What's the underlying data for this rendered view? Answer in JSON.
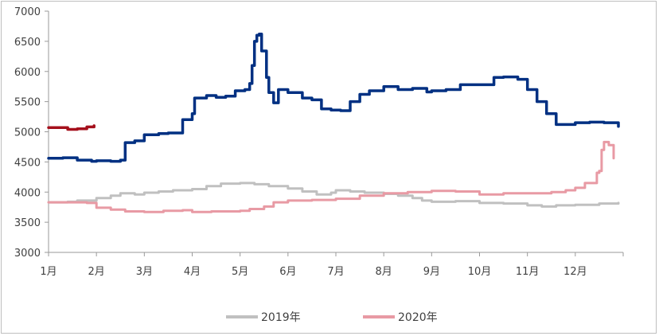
{
  "chart_data": {
    "type": "line",
    "ylim": [
      3000,
      7000
    ],
    "y_ticks": [
      "7000",
      "6500",
      "6000",
      "5500",
      "5000",
      "4500",
      "4000",
      "3500",
      "3000"
    ],
    "x_ticks": [
      "1月",
      "2月",
      "3月",
      "4月",
      "5月",
      "6月",
      "7月",
      "8月",
      "9月",
      "10月",
      "11月",
      "12月"
    ],
    "grid": false,
    "legend_position": "bottom",
    "series": [
      {
        "name": "2019年",
        "color": "#c0c0c0",
        "x": [
          1.0,
          1.4,
          1.6,
          2.0,
          2.3,
          2.5,
          2.8,
          3.0,
          3.3,
          3.6,
          4.0,
          4.3,
          4.6,
          5.0,
          5.3,
          5.6,
          6.0,
          6.3,
          6.6,
          6.9,
          7.0,
          7.3,
          7.6,
          8.0,
          8.3,
          8.6,
          8.8,
          9.0,
          9.5,
          10.0,
          10.5,
          11.0,
          11.3,
          11.6,
          12.0,
          12.5,
          12.9
        ],
        "values": [
          3830,
          3840,
          3860,
          3900,
          3940,
          3980,
          3960,
          3990,
          4010,
          4030,
          4050,
          4100,
          4140,
          4150,
          4130,
          4100,
          4060,
          4010,
          3960,
          3990,
          4030,
          4010,
          3990,
          3970,
          3940,
          3900,
          3860,
          3840,
          3850,
          3820,
          3810,
          3780,
          3760,
          3780,
          3790,
          3810,
          3820
        ]
      },
      {
        "name": "2020年",
        "color": "#e89aa4",
        "x": [
          1.0,
          1.4,
          1.8,
          2.0,
          2.3,
          2.6,
          3.0,
          3.4,
          3.8,
          4.0,
          4.4,
          5.0,
          5.2,
          5.5,
          5.7,
          6.0,
          6.5,
          7.0,
          7.5,
          8.0,
          8.5,
          9.0,
          9.5,
          10.0,
          10.5,
          11.0,
          11.5,
          11.8,
          12.0,
          12.2,
          12.45,
          12.5,
          12.55,
          12.6,
          12.7,
          12.8
        ],
        "values": [
          3830,
          3830,
          3820,
          3740,
          3710,
          3680,
          3670,
          3690,
          3700,
          3670,
          3680,
          3690,
          3720,
          3760,
          3830,
          3860,
          3870,
          3890,
          3940,
          3980,
          4000,
          4020,
          4010,
          3960,
          3980,
          3980,
          4000,
          4030,
          4070,
          4150,
          4320,
          4350,
          4700,
          4830,
          4780,
          4560
        ]
      },
      {
        "name": "",
        "color": "#003082",
        "x": [
          1.0,
          1.3,
          1.6,
          1.9,
          2.0,
          2.3,
          2.5,
          2.6,
          2.8,
          3.0,
          3.3,
          3.5,
          3.8,
          4.0,
          4.05,
          4.3,
          4.5,
          4.7,
          4.9,
          5.1,
          5.2,
          5.25,
          5.3,
          5.35,
          5.4,
          5.45,
          5.55,
          5.6,
          5.7,
          5.8,
          6.0,
          6.3,
          6.5,
          6.7,
          6.9,
          7.1,
          7.3,
          7.5,
          7.7,
          8.0,
          8.3,
          8.6,
          8.9,
          9.0,
          9.3,
          9.6,
          10.0,
          10.3,
          10.5,
          10.8,
          11.0,
          11.2,
          11.4,
          11.6,
          12.0,
          12.3,
          12.6,
          12.9
        ],
        "values": [
          4560,
          4570,
          4530,
          4510,
          4520,
          4510,
          4530,
          4820,
          4850,
          4950,
          4970,
          4980,
          5200,
          5300,
          5560,
          5600,
          5570,
          5590,
          5680,
          5700,
          5800,
          6100,
          6500,
          6600,
          6620,
          6340,
          5900,
          5650,
          5480,
          5700,
          5650,
          5560,
          5530,
          5380,
          5360,
          5350,
          5500,
          5620,
          5680,
          5750,
          5700,
          5720,
          5660,
          5680,
          5700,
          5780,
          5780,
          5900,
          5910,
          5870,
          5700,
          5500,
          5300,
          5120,
          5150,
          5160,
          5150,
          5090
        ]
      },
      {
        "name": "",
        "color": "#a5101c",
        "x": [
          1.0,
          1.2,
          1.4,
          1.6,
          1.8,
          1.95
        ],
        "values": [
          5070,
          5070,
          5040,
          5050,
          5080,
          5100
        ]
      }
    ]
  }
}
